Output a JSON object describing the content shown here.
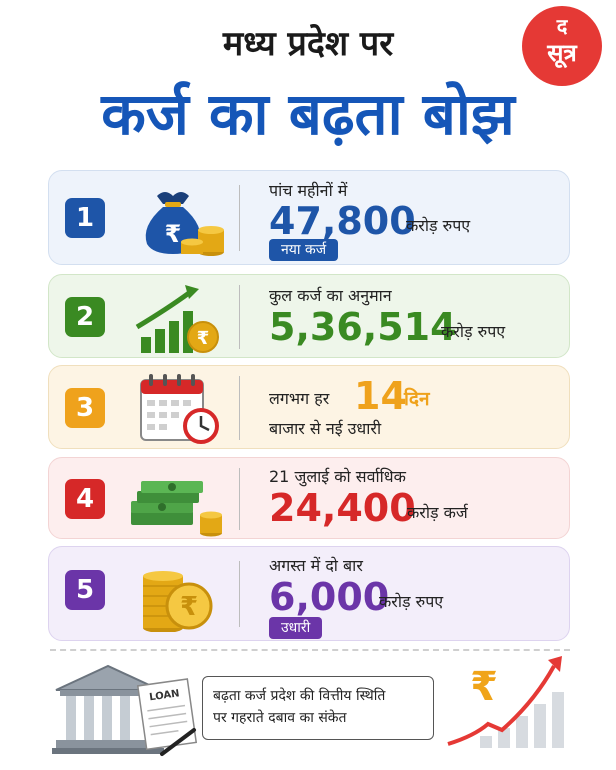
{
  "logo": {
    "line1": "द",
    "line2": "सूत्र"
  },
  "header": {
    "title_line1": "मध्य प्रदेश पर",
    "title_line2": "कर्ज का बढ़ता बोझ"
  },
  "cards": [
    {
      "num": "1",
      "line1": "पांच महीनों में",
      "value": "47,800",
      "unit": "करोड़ रुपए",
      "tag": "नया कर्ज",
      "icon": "money-bag-icon",
      "color": "#1e55a8"
    },
    {
      "num": "2",
      "line1": "कुल कर्ज का अनुमान",
      "value": "5,36,514",
      "unit": "करोड़ रुपए",
      "icon": "growth-chart-icon",
      "color": "#3a8a22"
    },
    {
      "num": "3",
      "line1": "लगभग हर",
      "value": "14",
      "value_suffix": "दिन",
      "line3": "बाजार से नई उधारी",
      "icon": "calendar-clock-icon",
      "color": "#efa21c"
    },
    {
      "num": "4",
      "line1": "21 जुलाई को सर्वाधिक",
      "value": "24,400",
      "unit": "करोड़ कर्ज",
      "icon": "cash-stack-icon",
      "color": "#d62828"
    },
    {
      "num": "5",
      "line1": "अगस्त में दो बार",
      "value": "6,000",
      "unit": "करोड़ रुपए",
      "tag": "उधारी",
      "icon": "coin-stack-icon",
      "color": "#6b35a8"
    }
  ],
  "footer": {
    "line1": "बढ़ता कर्ज प्रदेश की वित्तीय स्थिति",
    "line2": "पर गहराते दबाव का संकेत",
    "loan_label": "LOAN"
  }
}
